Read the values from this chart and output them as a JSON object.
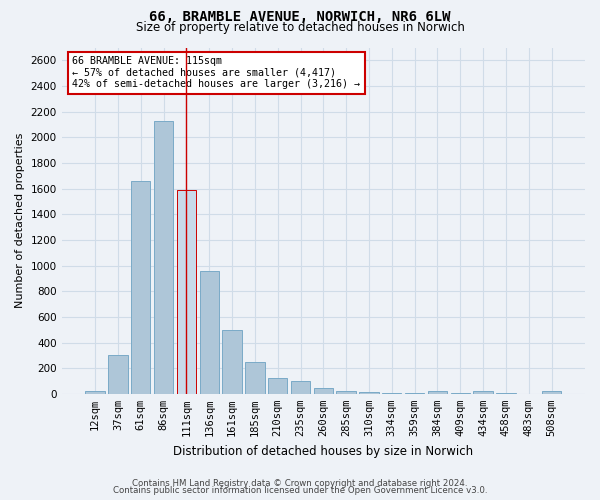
{
  "title": "66, BRAMBLE AVENUE, NORWICH, NR6 6LW",
  "subtitle": "Size of property relative to detached houses in Norwich",
  "xlabel": "Distribution of detached houses by size in Norwich",
  "ylabel": "Number of detached properties",
  "categories": [
    "12sqm",
    "37sqm",
    "61sqm",
    "86sqm",
    "111sqm",
    "136sqm",
    "161sqm",
    "185sqm",
    "210sqm",
    "235sqm",
    "260sqm",
    "285sqm",
    "310sqm",
    "334sqm",
    "359sqm",
    "384sqm",
    "409sqm",
    "434sqm",
    "458sqm",
    "483sqm",
    "508sqm"
  ],
  "values": [
    20,
    300,
    1660,
    2130,
    1590,
    960,
    500,
    245,
    120,
    100,
    45,
    20,
    15,
    10,
    5,
    20,
    5,
    20,
    5,
    0,
    20
  ],
  "highlight_index": 4,
  "bar_color": "#aec6d8",
  "bar_color_light": "#c8daea",
  "bar_edge_color": "#7aaac8",
  "highlight_bar_color": "#c8daea",
  "highlight_bar_edge_color": "#cc0000",
  "vline_color": "#cc0000",
  "annotation_text": "66 BRAMBLE AVENUE: 115sqm\n← 57% of detached houses are smaller (4,417)\n42% of semi-detached houses are larger (3,216) →",
  "annotation_box_facecolor": "#ffffff",
  "annotation_box_edgecolor": "#cc0000",
  "ylim": [
    0,
    2700
  ],
  "yticks": [
    0,
    200,
    400,
    600,
    800,
    1000,
    1200,
    1400,
    1600,
    1800,
    2000,
    2200,
    2400,
    2600
  ],
  "footer_line1": "Contains HM Land Registry data © Crown copyright and database right 2024.",
  "footer_line2": "Contains public sector information licensed under the Open Government Licence v3.0.",
  "grid_color": "#d0dce8",
  "background_color": "#eef2f7",
  "title_fontsize": 10,
  "subtitle_fontsize": 8.5,
  "ylabel_fontsize": 8,
  "xlabel_fontsize": 8.5,
  "tick_fontsize": 7.5,
  "footer_fontsize": 6.2,
  "figwidth": 6.0,
  "figheight": 5.0,
  "dpi": 100
}
